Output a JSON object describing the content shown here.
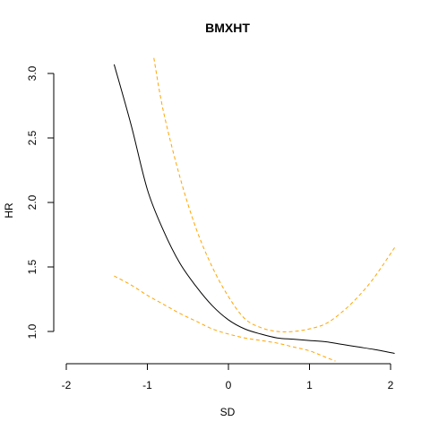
{
  "chart_data": {
    "type": "line",
    "title": "BMXHT",
    "xlabel": "SD",
    "ylabel": "HR",
    "xlim": [
      -2,
      2
    ],
    "ylim": [
      0.8,
      3.05
    ],
    "x_ticks": [
      -2,
      -1,
      0,
      1,
      2
    ],
    "x_tick_labels": [
      "-2",
      "-1",
      "0",
      "1",
      "2"
    ],
    "y_ticks": [
      1.0,
      1.5,
      2.0,
      2.5,
      3.0
    ],
    "y_tick_labels": [
      "1.0",
      "1.5",
      "2.0",
      "2.5",
      "3.0"
    ],
    "grid": false,
    "series": [
      {
        "name": "estimate",
        "style": "solid",
        "color": "#000000",
        "x": [
          -1.41,
          -1.2,
          -1.0,
          -0.8,
          -0.6,
          -0.4,
          -0.2,
          0.0,
          0.2,
          0.4,
          0.6,
          0.8,
          1.0,
          1.2,
          1.4,
          1.6,
          1.8,
          2.05
        ],
        "y": [
          3.07,
          2.6,
          2.1,
          1.78,
          1.53,
          1.35,
          1.2,
          1.09,
          1.02,
          0.98,
          0.95,
          0.94,
          0.93,
          0.92,
          0.9,
          0.88,
          0.86,
          0.83
        ]
      },
      {
        "name": "upper",
        "style": "dashed",
        "color": "#FFA500",
        "x": [
          -0.92,
          -0.8,
          -0.6,
          -0.4,
          -0.2,
          0.0,
          0.2,
          0.4,
          0.6,
          0.8,
          1.0,
          1.2,
          1.4,
          1.6,
          1.8,
          2.05
        ],
        "y": [
          3.12,
          2.7,
          2.2,
          1.8,
          1.5,
          1.27,
          1.1,
          1.03,
          1.0,
          1.0,
          1.02,
          1.06,
          1.15,
          1.27,
          1.42,
          1.65
        ]
      },
      {
        "name": "lower",
        "style": "dashed",
        "color": "#FFA500",
        "x": [
          -1.41,
          -1.2,
          -1.0,
          -0.8,
          -0.6,
          -0.4,
          -0.2,
          0.0,
          0.2,
          0.4,
          0.6,
          0.8,
          1.0,
          1.2,
          1.32
        ],
        "y": [
          1.43,
          1.36,
          1.28,
          1.21,
          1.14,
          1.08,
          1.02,
          0.98,
          0.95,
          0.93,
          0.91,
          0.88,
          0.85,
          0.8,
          0.77
        ]
      }
    ]
  }
}
